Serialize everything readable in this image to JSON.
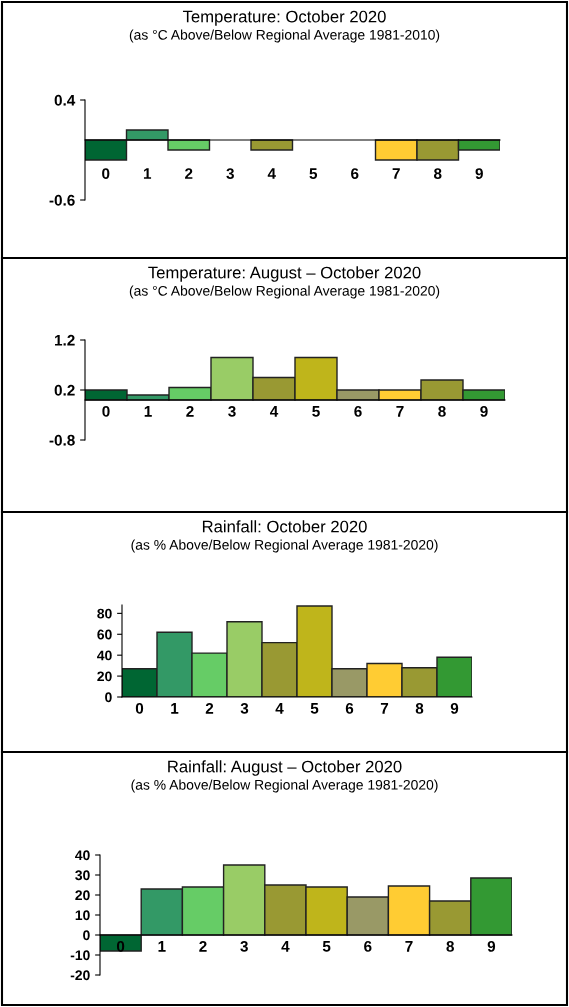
{
  "chart_data": [
    {
      "type": "bar",
      "title": "Temperature: October 2020",
      "subtitle": "(as °C Above/Below Regional Average 1981-2010)",
      "categories": [
        "0",
        "1",
        "2",
        "3",
        "4",
        "5",
        "6",
        "7",
        "8",
        "9"
      ],
      "values": [
        -0.2,
        0.1,
        -0.1,
        0,
        -0.1,
        0,
        0,
        -0.2,
        -0.2,
        -0.1
      ],
      "colors": [
        "#006633",
        "#339966",
        "#66cc66",
        "#99cc66",
        "#999933",
        "#bfb51b",
        "#999966",
        "#ffcc33",
        "#999933",
        "#339933"
      ],
      "ylim": [
        -0.6,
        0.4
      ],
      "yticks": [
        -0.6,
        0.4
      ]
    },
    {
      "type": "bar",
      "title": "Temperature: August – October 2020",
      "subtitle": "(as °C Above/Below Regional Average 1981-2020)",
      "categories": [
        "0",
        "1",
        "2",
        "3",
        "4",
        "5",
        "6",
        "7",
        "8",
        "9"
      ],
      "values": [
        0.2,
        0.1,
        0.25,
        0.85,
        0.45,
        0.85,
        0.2,
        0.2,
        0.4,
        0.2
      ],
      "colors": [
        "#006633",
        "#339966",
        "#66cc66",
        "#99cc66",
        "#999933",
        "#bfb51b",
        "#999966",
        "#ffcc33",
        "#999933",
        "#339933"
      ],
      "ylim": [
        -0.8,
        1.2
      ],
      "yticks": [
        -0.8,
        0.2,
        1.2
      ]
    },
    {
      "type": "bar",
      "title": "Rainfall: October 2020",
      "subtitle": "(as % Above/Below Regional Average 1981-2020)",
      "categories": [
        "0",
        "1",
        "2",
        "3",
        "4",
        "5",
        "6",
        "7",
        "8",
        "9"
      ],
      "values": [
        27,
        62,
        42,
        72,
        52,
        87,
        27,
        32,
        28,
        38
      ],
      "colors": [
        "#006633",
        "#339966",
        "#66cc66",
        "#99cc66",
        "#999933",
        "#bfb51b",
        "#999966",
        "#ffcc33",
        "#999933",
        "#339933"
      ],
      "ylim": [
        0,
        88
      ],
      "yticks": [
        0,
        20,
        40,
        60,
        80
      ]
    },
    {
      "type": "bar",
      "title": "Rainfall: August – October 2020",
      "subtitle": "(as % Above/Below Regional Average 1981-2020)",
      "categories": [
        "0",
        "1",
        "2",
        "3",
        "4",
        "5",
        "6",
        "7",
        "8",
        "9"
      ],
      "values": [
        -8,
        23,
        24,
        35,
        25,
        24,
        19,
        24.5,
        17,
        28.5
      ],
      "colors": [
        "#006633",
        "#339966",
        "#66cc66",
        "#99cc66",
        "#999933",
        "#bfb51b",
        "#999966",
        "#ffcc33",
        "#999933",
        "#339933"
      ],
      "ylim": [
        -20,
        40
      ],
      "yticks": [
        -20,
        -10,
        0,
        10,
        20,
        30,
        40
      ]
    }
  ]
}
